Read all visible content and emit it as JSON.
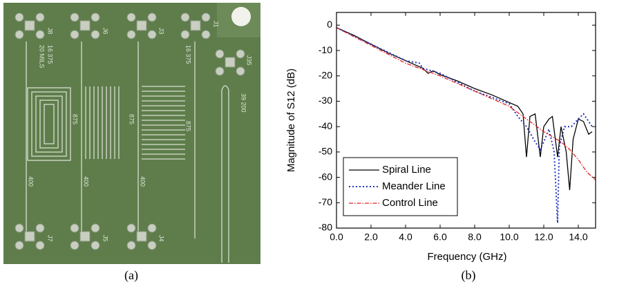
{
  "panel_labels": [
    "(a)",
    "(b)"
  ],
  "board_labels": [
    "J8",
    "J6",
    "J3",
    "J1",
    "J35",
    "20 MILS",
    "16 375",
    "16 375",
    "39 200",
    "875",
    "875",
    "875",
    "400",
    "400",
    "400",
    "J7",
    "J5",
    "J4"
  ],
  "chart_data": {
    "type": "line",
    "x_label": "Frequency (GHz)",
    "y_label": "Magnitude of S12 (dB)",
    "xlim": [
      0,
      15
    ],
    "ylim": [
      -80,
      5
    ],
    "xticks": [
      {
        "value": 0,
        "label": "0.0"
      },
      {
        "value": 2,
        "label": "2.0"
      },
      {
        "value": 4,
        "label": "4.0"
      },
      {
        "value": 6,
        "label": "6.0"
      },
      {
        "value": 8,
        "label": "8.0"
      },
      {
        "value": 10,
        "label": "10.0"
      },
      {
        "value": 12,
        "label": "12.0"
      },
      {
        "value": 14,
        "label": "14.0"
      }
    ],
    "yticks": [
      0,
      -10,
      -20,
      -30,
      -40,
      -50,
      -60,
      -70,
      -80
    ],
    "legend": "lower left",
    "series": [
      {
        "name": "Spiral Line",
        "color": "#000000",
        "style": "solid",
        "x": [
          0,
          1,
          2,
          3,
          4,
          5,
          5.3,
          5.6,
          6,
          7,
          8,
          9,
          9.5,
          10,
          10.5,
          10.8,
          11.0,
          11.2,
          11.5,
          11.8,
          12.0,
          12.3,
          12.5,
          12.8,
          13.0,
          13.3,
          13.5,
          13.7,
          14.0,
          14.3,
          14.6,
          14.8
        ],
        "values": [
          -1,
          -4,
          -7.5,
          -11,
          -14,
          -17,
          -19,
          -18,
          -19.5,
          -22,
          -25,
          -27.5,
          -29,
          -30.5,
          -32,
          -35,
          -52,
          -36,
          -35,
          -52,
          -40,
          -37,
          -36,
          -52,
          -40,
          -50,
          -65,
          -45,
          -37,
          -38,
          -43,
          -42
        ]
      },
      {
        "name": "Meander Line",
        "color": "#2233bb",
        "style": "dotted",
        "x": [
          0,
          2,
          4,
          4.8,
          5,
          6,
          8,
          10,
          10.5,
          11,
          11.5,
          11.8,
          12,
          12.3,
          12.6,
          12.8,
          12.9,
          13.2,
          13.6,
          14,
          14.3,
          14.6,
          14.8
        ],
        "values": [
          -1,
          -7.5,
          -14,
          -15,
          -17,
          -19,
          -26,
          -31,
          -36,
          -40,
          -46,
          -49,
          -46,
          -41,
          -50,
          -78,
          -48,
          -40,
          -40,
          -37,
          -35,
          -38,
          -40
        ]
      },
      {
        "name": "Control Line",
        "color": "#e02020",
        "style": "dashdot",
        "x": [
          0,
          1,
          2,
          3,
          4,
          5,
          6,
          7,
          8,
          9,
          10,
          11,
          12,
          13,
          13.5,
          14,
          14.5,
          15
        ],
        "values": [
          -1,
          -4.5,
          -8,
          -11.5,
          -15,
          -17.5,
          -20,
          -23,
          -26,
          -29,
          -32,
          -37,
          -42,
          -46,
          -49,
          -53,
          -58,
          -61
        ]
      }
    ]
  }
}
